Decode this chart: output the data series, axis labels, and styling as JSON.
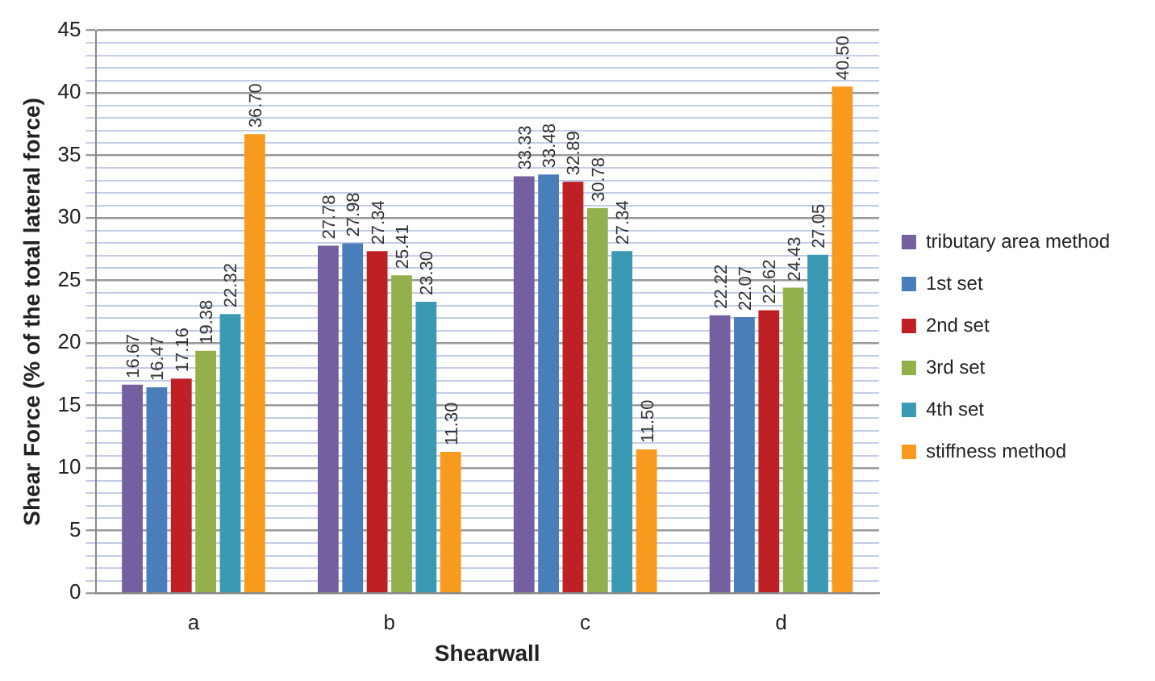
{
  "chart_data": {
    "type": "bar",
    "xlabel": "Shearwall",
    "ylabel": "Shear Force (% of the total lateral force)",
    "categories": [
      "a",
      "b",
      "c",
      "d"
    ],
    "series": [
      {
        "name": "tributary area method",
        "color": "#7460a0",
        "values": [
          16.67,
          27.78,
          33.33,
          22.22
        ],
        "value_labels": [
          "16.67",
          "27.78",
          "33.33",
          "22.22"
        ]
      },
      {
        "name": "1st set",
        "color": "#4a7ebb",
        "values": [
          16.47,
          27.98,
          33.48,
          22.07
        ],
        "value_labels": [
          "16.47",
          "27.98",
          "33.48",
          "22.07"
        ]
      },
      {
        "name": "2nd set",
        "color": "#be2026",
        "values": [
          17.16,
          27.34,
          32.89,
          22.62
        ],
        "value_labels": [
          "17.16",
          "27.34",
          "32.89",
          "22.62"
        ]
      },
      {
        "name": "3rd set",
        "color": "#94b04c",
        "values": [
          19.38,
          25.41,
          30.78,
          24.43
        ],
        "value_labels": [
          "19.38",
          "25.41",
          "30.78",
          "24.43"
        ]
      },
      {
        "name": "4th set",
        "color": "#3a9ab3",
        "values": [
          22.32,
          23.3,
          27.34,
          27.05
        ],
        "value_labels": [
          "22.32",
          "23.30",
          "27.34",
          "27.05"
        ]
      },
      {
        "name": "stiffness method",
        "color": "#f79a1e",
        "values": [
          36.7,
          11.3,
          11.5,
          40.5
        ],
        "value_labels": [
          "36.70",
          "11.30",
          "11.50",
          "40.50"
        ]
      }
    ],
    "ylim": [
      0,
      45
    ],
    "yticks": [
      0,
      {
        "value": 1,
        "label": null
      },
      {
        "value": 2,
        "label": null
      },
      {
        "value": 3,
        "label": null
      },
      {
        "value": 4,
        "label": null
      },
      5,
      {
        "value": 6,
        "label": null
      },
      {
        "value": 7,
        "label": null
      },
      {
        "value": 8,
        "label": null
      },
      {
        "value": 9,
        "label": null
      },
      10,
      {
        "value": 11,
        "label": null
      },
      {
        "value": 12,
        "label": null
      },
      {
        "value": 13,
        "label": null
      },
      {
        "value": 14,
        "label": null
      },
      15,
      {
        "value": 16,
        "label": null
      },
      {
        "value": 17,
        "label": null
      },
      {
        "value": 18,
        "label": null
      },
      {
        "value": 19,
        "label": null
      },
      20,
      {
        "value": 21,
        "label": null
      },
      {
        "value": 22,
        "label": null
      },
      {
        "value": 23,
        "label": null
      },
      {
        "value": 24,
        "label": null
      },
      25,
      {
        "value": 26,
        "label": null
      },
      {
        "value": 27,
        "label": null
      },
      {
        "value": 28,
        "label": null
      },
      {
        "value": 29,
        "label": null
      },
      30,
      {
        "value": 31,
        "label": null
      },
      {
        "value": 32,
        "label": null
      },
      {
        "value": 33,
        "label": null
      },
      {
        "value": 34,
        "label": null
      },
      35,
      {
        "value": 36,
        "label": null
      },
      {
        "value": 37,
        "label": null
      },
      {
        "value": 38,
        "label": null
      },
      {
        "value": 39,
        "label": null
      },
      40,
      {
        "value": 41,
        "label": null
      },
      {
        "value": 42,
        "label": null
      },
      {
        "value": 43,
        "label": null
      },
      {
        "value": 44,
        "label": null
      },
      45
    ],
    "grid": true,
    "legend": "right"
  }
}
